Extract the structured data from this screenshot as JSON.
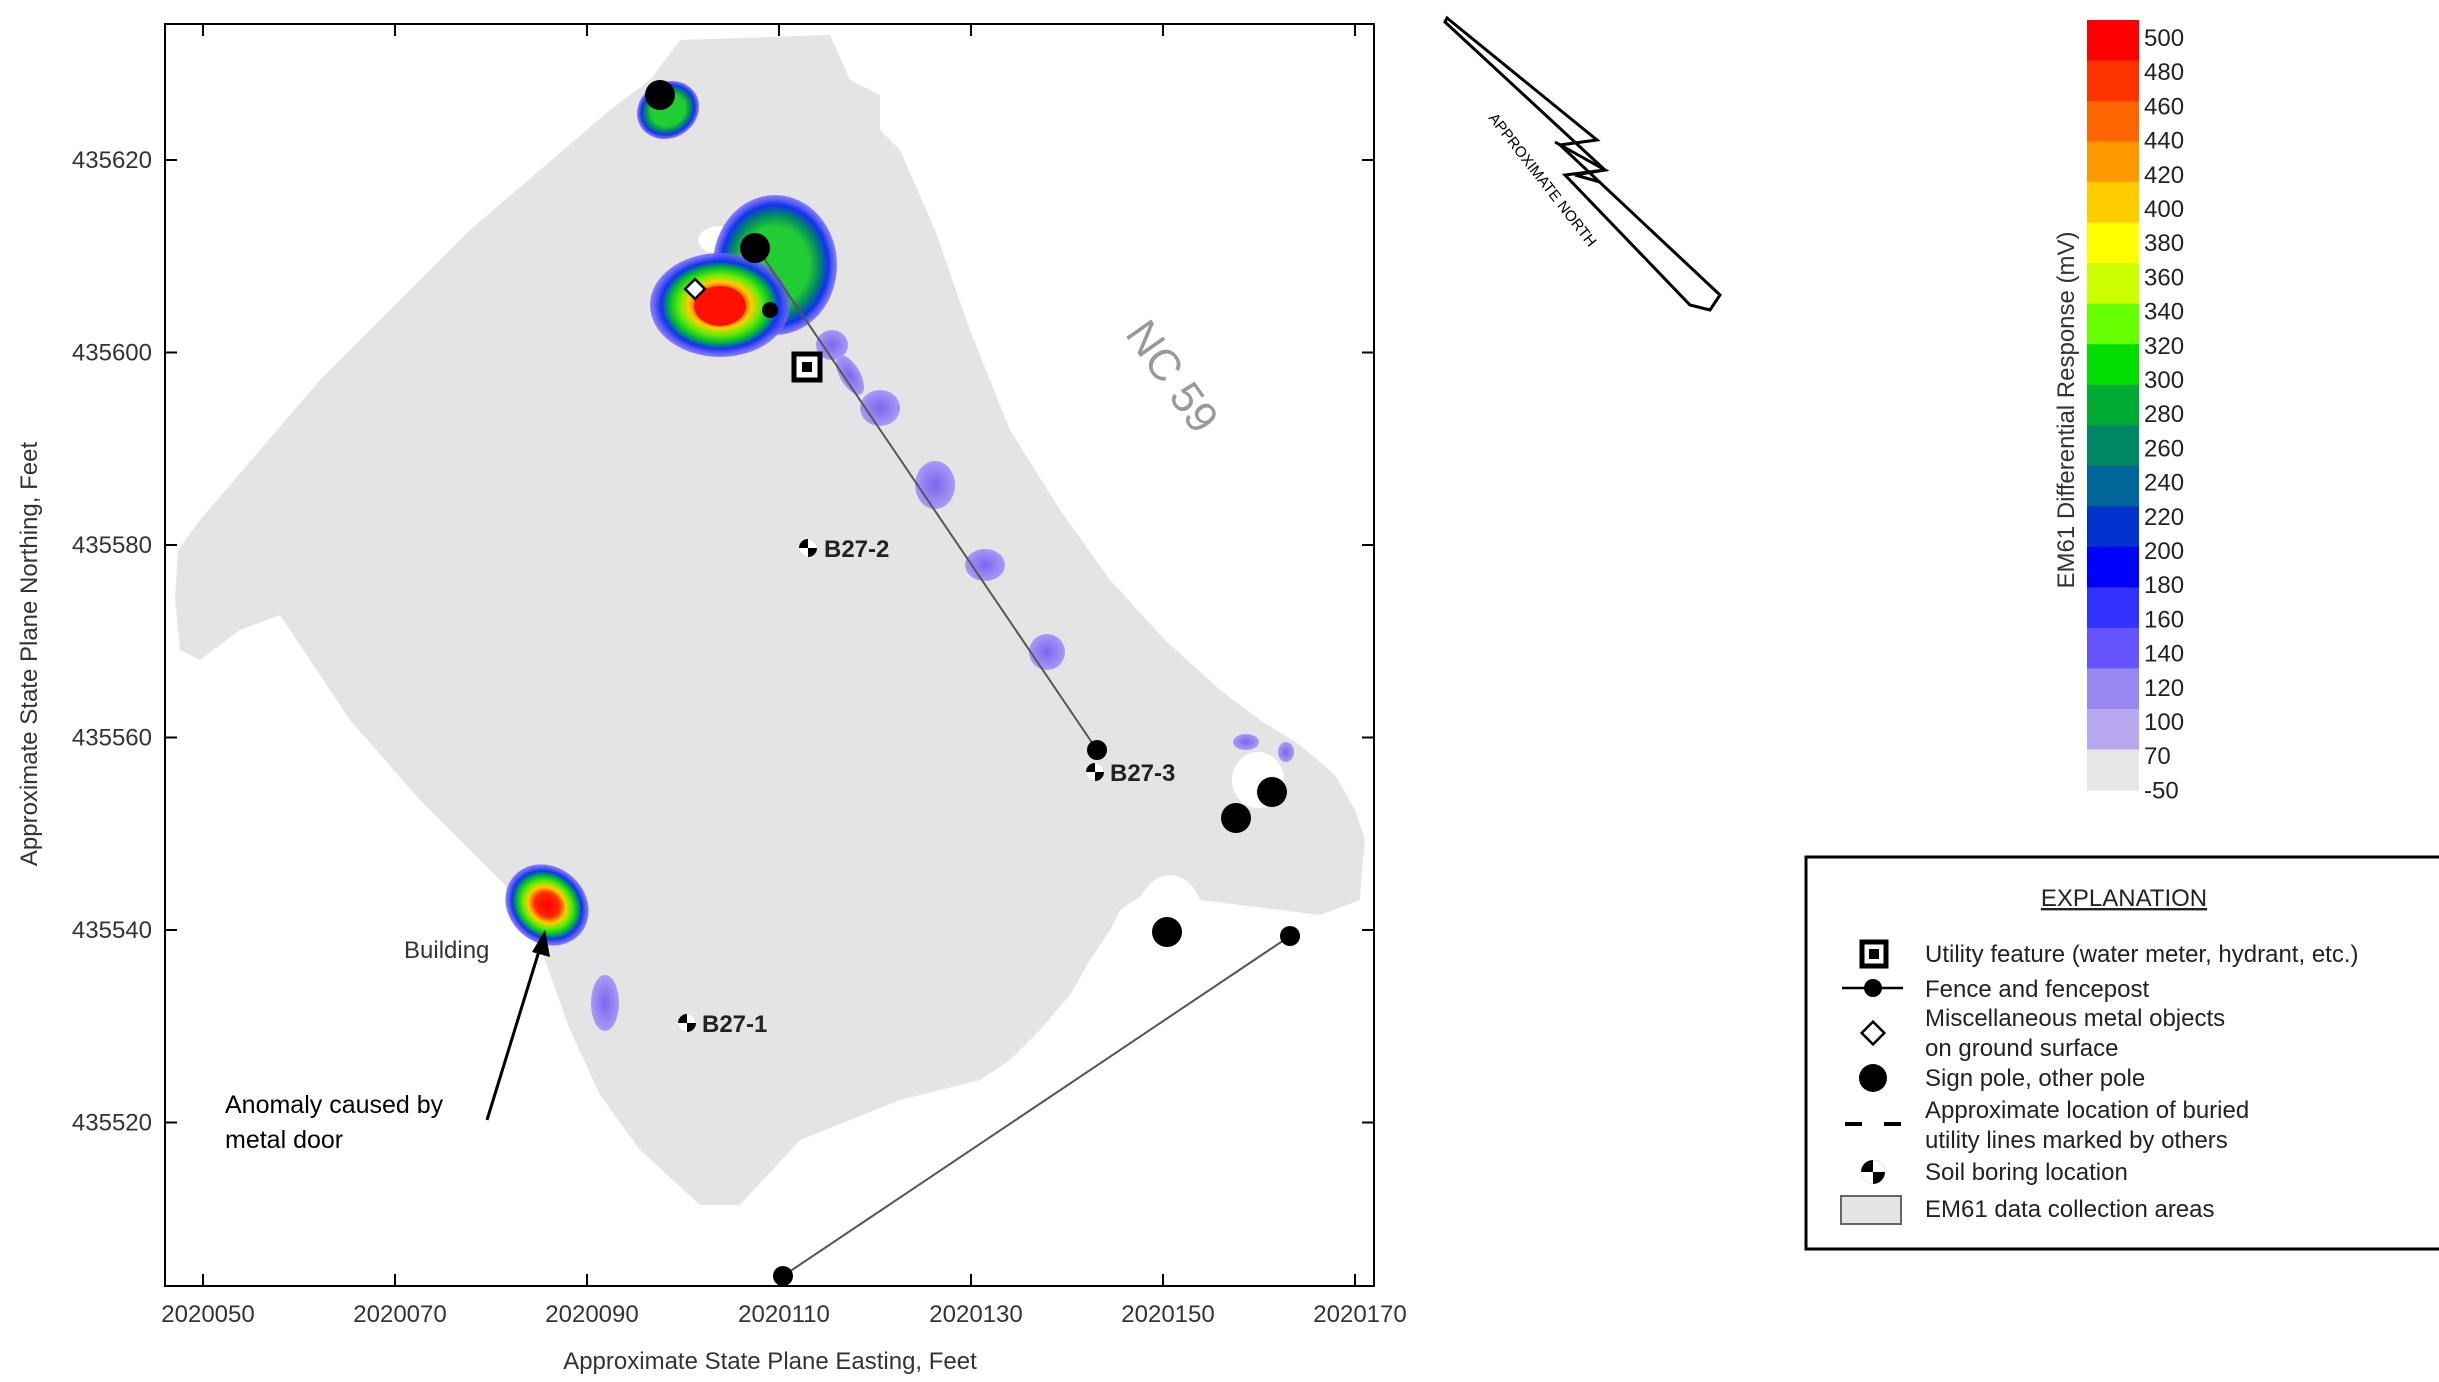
{
  "map": {
    "x_axis_label": "Approximate State Plane Easting, Feet",
    "y_axis_label": "Approximate State Plane Northing, Feet",
    "x_ticks": [
      "2020050",
      "2020070",
      "2020090",
      "2020110",
      "2020130",
      "2020150",
      "2020170"
    ],
    "y_ticks": [
      "435620",
      "435600",
      "435580",
      "435560",
      "435540",
      "435520"
    ],
    "road_label": "NC 59",
    "building_label": "Building",
    "annotation": [
      "Anomaly caused by",
      "metal door"
    ],
    "borings": [
      {
        "label": "B27-2"
      },
      {
        "label": "B27-3"
      },
      {
        "label": "B27-1"
      }
    ]
  },
  "north_arrow": {
    "label": "APPROXIMATE NORTH",
    "icon": "north-arrow-icon"
  },
  "colorbar": {
    "title": "EM61 Differential Response (mV)",
    "ticks": [
      "500",
      "480",
      "460",
      "440",
      "420",
      "400",
      "380",
      "360",
      "340",
      "320",
      "300",
      "280",
      "260",
      "240",
      "220",
      "200",
      "180",
      "160",
      "140",
      "120",
      "100",
      "70",
      "-50"
    ],
    "colors": [
      "#ff0000",
      "#ff3300",
      "#ff6600",
      "#ff9900",
      "#ffcc00",
      "#ffff00",
      "#ccff00",
      "#66ff00",
      "#00dd00",
      "#00aa33",
      "#008866",
      "#006699",
      "#0033cc",
      "#0000ff",
      "#3333ff",
      "#6655ff",
      "#9988f0",
      "#b8a8f0",
      "#e6e6e6"
    ]
  },
  "legend": {
    "title": "EXPLANATION",
    "items": [
      {
        "icon": "square-target-icon",
        "lines": [
          "Utility feature (water meter, hydrant, etc.)"
        ]
      },
      {
        "icon": "fence-post-icon",
        "lines": [
          "Fence and fencepost"
        ]
      },
      {
        "icon": "diamond-icon",
        "lines": [
          "Miscellaneous metal objects",
          "on ground surface"
        ]
      },
      {
        "icon": "filled-circle-icon",
        "lines": [
          "Sign pole, other pole"
        ]
      },
      {
        "icon": "dashed-line-icon",
        "lines": [
          "Approximate location of buried",
          "utility lines marked by others"
        ]
      },
      {
        "icon": "soil-boring-icon",
        "lines": [
          "Soil boring location"
        ]
      },
      {
        "icon": "gray-rectangle-icon",
        "lines": [
          "EM61 data collection areas"
        ]
      }
    ]
  }
}
